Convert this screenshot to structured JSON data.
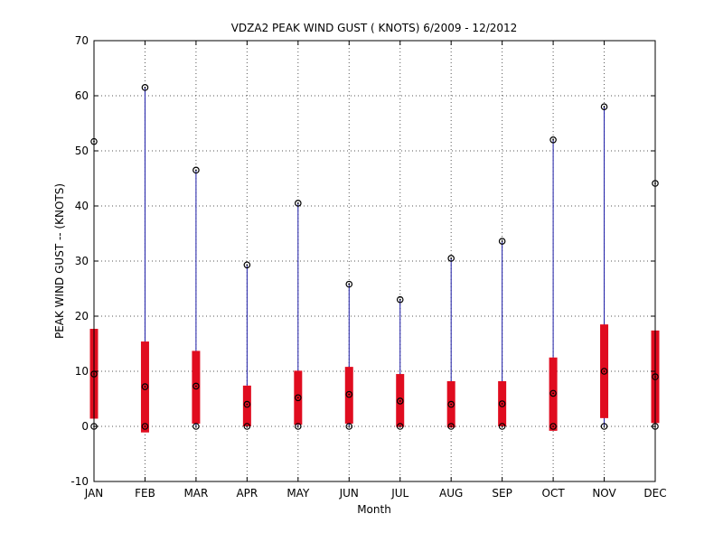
{
  "chart_data": {
    "type": "bar",
    "title": "VDZA2  PEAK WIND GUST ( KNOTS) 6/2009 - 12/2012",
    "xlabel": "Month",
    "ylabel": "PEAK WIND GUST -- (KNOTS)",
    "ylim": [
      -10,
      70
    ],
    "yticks": [
      -10,
      0,
      10,
      20,
      30,
      40,
      50,
      60,
      70
    ],
    "grid": true,
    "categories": [
      "JAN",
      "FEB",
      "MAR",
      "APR",
      "MAY",
      "JUN",
      "JUL",
      "AUG",
      "SEP",
      "OCT",
      "NOV",
      "DEC"
    ],
    "series": [
      {
        "stat": "max",
        "values": [
          51.7,
          61.5,
          46.5,
          29.3,
          40.5,
          25.8,
          23.0,
          30.5,
          33.6,
          52.0,
          58.0,
          44.1
        ]
      },
      {
        "stat": "min",
        "values": [
          0,
          0,
          0,
          0,
          0,
          0,
          0,
          0,
          0,
          0,
          0,
          0
        ]
      },
      {
        "stat": "mean",
        "values": [
          9.5,
          7.2,
          7.3,
          4.0,
          5.2,
          5.8,
          4.6,
          4.0,
          4.1,
          6.0,
          10.0,
          9.0
        ]
      },
      {
        "stat": "box_high",
        "values": [
          17.7,
          15.4,
          13.7,
          7.4,
          10.1,
          10.8,
          9.5,
          8.2,
          8.2,
          12.5,
          18.5,
          17.4
        ]
      },
      {
        "stat": "box_low",
        "values": [
          1.4,
          -1.1,
          0.5,
          0.0,
          0.3,
          0.5,
          -0.1,
          -0.2,
          0.0,
          -0.8,
          1.5,
          0.6
        ]
      }
    ],
    "colors": {
      "whisker": "#1a1aa6",
      "box": "#e00c1f",
      "marker": "#000000",
      "grid": "#555555"
    }
  }
}
